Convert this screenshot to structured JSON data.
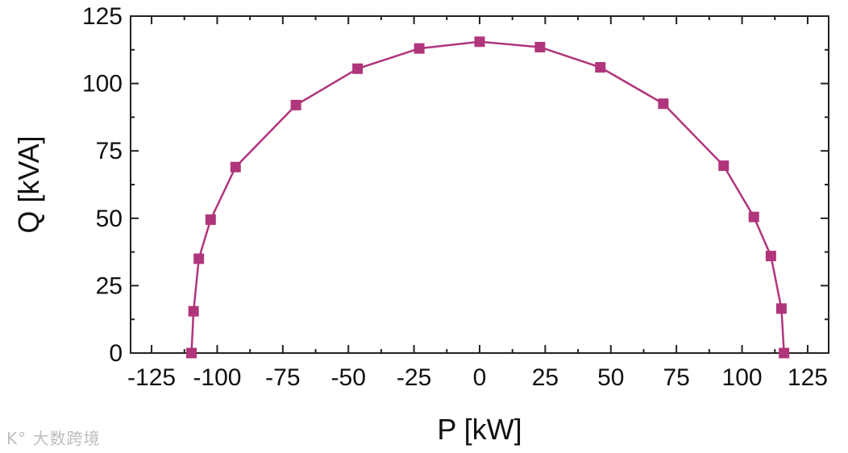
{
  "chart_data": {
    "type": "line",
    "xlabel": "P [kW]",
    "ylabel": "Q [kVA]",
    "xlim": [
      -133,
      133
    ],
    "ylim": [
      0,
      125
    ],
    "xticks": [
      -125,
      -100,
      -75,
      -50,
      -25,
      0,
      25,
      50,
      75,
      100,
      125
    ],
    "yticks": [
      0,
      25,
      50,
      75,
      100,
      125
    ],
    "grid": false,
    "series": [
      {
        "color": "#b0357a",
        "marker": "square",
        "x": [
          -109.8,
          -109.0,
          -107.0,
          -102.5,
          -93.0,
          -70.0,
          -46.5,
          -23.0,
          0,
          23.0,
          46.0,
          70.0,
          93.0,
          104.5,
          111.0,
          115.0,
          116.0
        ],
        "y": [
          0,
          15.5,
          35,
          49.5,
          69,
          92,
          105.5,
          113,
          115.5,
          113.5,
          106,
          92.5,
          69.5,
          50.5,
          36,
          16.5,
          0
        ]
      }
    ]
  },
  "watermark": {
    "text": "大数跨境"
  }
}
